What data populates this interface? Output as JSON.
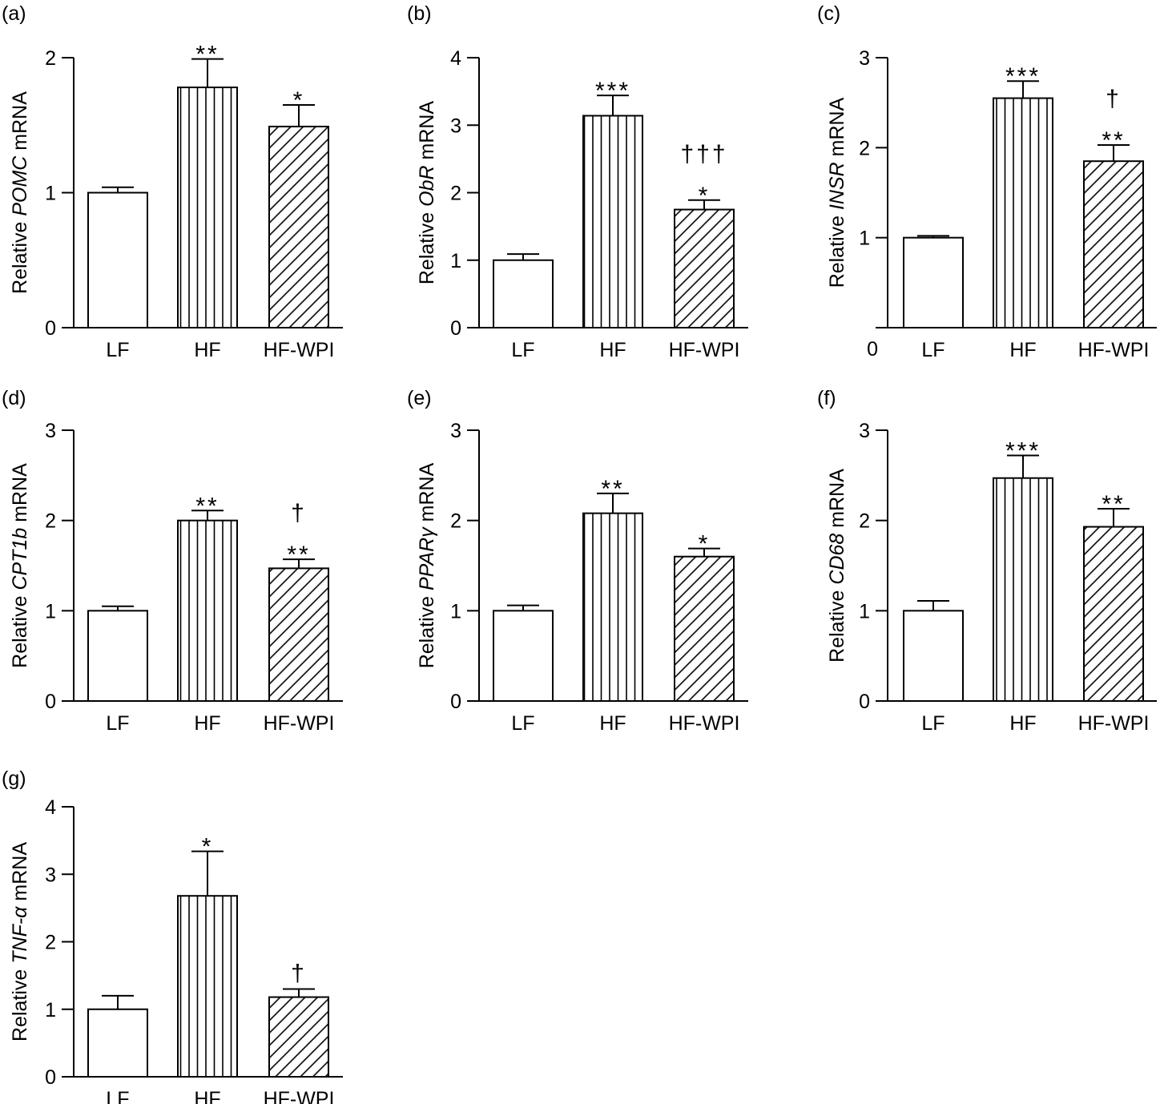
{
  "chart_data": [
    {
      "type": "bar",
      "panel_label": "(a)",
      "ylabel_prefix": "Relative ",
      "ylabel_gene": "POMC",
      "ylabel_suffix": " mRNA",
      "categories": [
        "LF",
        "HF",
        "HF-WPI"
      ],
      "values": [
        1.0,
        1.78,
        1.49
      ],
      "errors": [
        0.04,
        0.21,
        0.16
      ],
      "annotations": [
        [],
        [
          "**"
        ],
        [
          "*"
        ]
      ],
      "ylim": [
        0,
        2
      ],
      "yticks": [
        "0",
        "1",
        "2"
      ],
      "fills": [
        "plain",
        "vertical",
        "diagonal"
      ]
    },
    {
      "type": "bar",
      "panel_label": "(b)",
      "ylabel_prefix": "Relative ",
      "ylabel_gene": "ObR",
      "ylabel_suffix": " mRNA",
      "categories": [
        "LF",
        "HF",
        "HF-WPI"
      ],
      "values": [
        1.0,
        3.14,
        1.75
      ],
      "errors": [
        0.09,
        0.3,
        0.14
      ],
      "annotations": [
        [],
        [
          "***"
        ],
        [
          "*",
          "†††"
        ]
      ],
      "ylim": [
        0,
        4
      ],
      "yticks": [
        "0",
        "1",
        "2",
        "3",
        "4"
      ],
      "fills": [
        "plain",
        "vertical",
        "diagonal"
      ]
    },
    {
      "type": "bar",
      "panel_label": "(c)",
      "ylabel_prefix": "Relative ",
      "ylabel_gene": "INSR",
      "ylabel_suffix": " mRNA",
      "categories": [
        "LF",
        "HF",
        "HF-WPI"
      ],
      "values": [
        1.0,
        2.55,
        1.85
      ],
      "errors": [
        0.02,
        0.19,
        0.18
      ],
      "annotations": [
        [],
        [
          "***"
        ],
        [
          "**",
          "†"
        ]
      ],
      "ylim": [
        0,
        3
      ],
      "yticks": [
        "0",
        "1",
        "2",
        "3"
      ],
      "fills": [
        "plain",
        "vertical",
        "diagonal"
      ]
    },
    {
      "type": "bar",
      "panel_label": "(d)",
      "ylabel_prefix": "Relative ",
      "ylabel_gene": "CPT1b",
      "ylabel_suffix": " mRNA",
      "categories": [
        "LF",
        "HF",
        "HF-WPI"
      ],
      "values": [
        1.0,
        2.0,
        1.47
      ],
      "errors": [
        0.05,
        0.11,
        0.1
      ],
      "annotations": [
        [],
        [
          "**"
        ],
        [
          "**",
          "†"
        ]
      ],
      "ylim": [
        0,
        3
      ],
      "yticks": [
        "0",
        "1",
        "2",
        "3"
      ],
      "fills": [
        "plain",
        "vertical",
        "diagonal"
      ]
    },
    {
      "type": "bar",
      "panel_label": "(e)",
      "ylabel_prefix": "Relative ",
      "ylabel_gene": "PPARγ",
      "ylabel_suffix": " mRNA",
      "categories": [
        "LF",
        "HF",
        "HF-WPI"
      ],
      "values": [
        1.0,
        2.08,
        1.6
      ],
      "errors": [
        0.06,
        0.22,
        0.09
      ],
      "annotations": [
        [],
        [
          "**"
        ],
        [
          "*"
        ]
      ],
      "ylim": [
        0,
        3
      ],
      "yticks": [
        "0",
        "1",
        "2",
        "3"
      ],
      "fills": [
        "plain",
        "vertical",
        "diagonal"
      ]
    },
    {
      "type": "bar",
      "panel_label": "(f)",
      "ylabel_prefix": "Relative ",
      "ylabel_gene": "CD68",
      "ylabel_suffix": " mRNA",
      "categories": [
        "LF",
        "HF",
        "HF-WPI"
      ],
      "values": [
        1.0,
        2.47,
        1.93
      ],
      "errors": [
        0.11,
        0.25,
        0.2
      ],
      "annotations": [
        [],
        [
          "***"
        ],
        [
          "**"
        ]
      ],
      "ylim": [
        0,
        3
      ],
      "yticks": [
        "0",
        "1",
        "2",
        "3"
      ],
      "fills": [
        "plain",
        "vertical",
        "diagonal"
      ]
    },
    {
      "type": "bar",
      "panel_label": "(g)",
      "ylabel_prefix": "Relative ",
      "ylabel_gene": "TNF-α",
      "ylabel_suffix": " mRNA",
      "categories": [
        "LF",
        "HF",
        "HF-WPI"
      ],
      "values": [
        1.0,
        2.68,
        1.18
      ],
      "errors": [
        0.2,
        0.66,
        0.12
      ],
      "annotations": [
        [],
        [
          "*"
        ],
        [
          "†"
        ]
      ],
      "ylim": [
        0,
        4
      ],
      "yticks": [
        "0",
        "1",
        "2",
        "3",
        "4"
      ],
      "fills": [
        "plain",
        "vertical",
        "diagonal"
      ]
    }
  ]
}
